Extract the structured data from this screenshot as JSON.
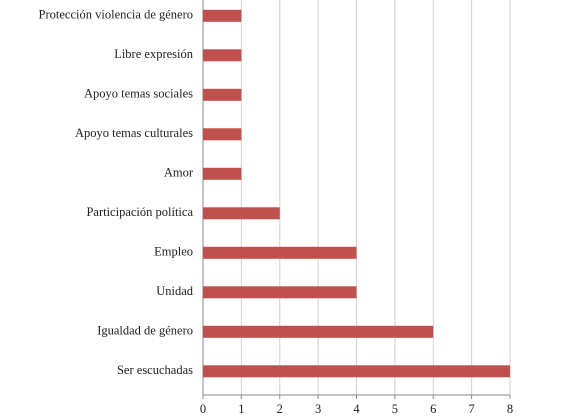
{
  "chart_data": {
    "type": "hbar",
    "categories": [
      "Protección violencia de género",
      "Libre expresión",
      "Apoyo temas sociales",
      "Apoyo temas culturales",
      "Amor",
      "Participación política",
      "Empleo",
      "Unidad",
      "Igualdad de género",
      "Ser escuchadas"
    ],
    "values": [
      1,
      1,
      1,
      1,
      1,
      2,
      4,
      4,
      6,
      8
    ],
    "color": "#c0504d",
    "xlim": [
      0,
      8
    ],
    "xticks": [
      0,
      1,
      2,
      3,
      4,
      5,
      6,
      7,
      8
    ],
    "grid": true
  }
}
